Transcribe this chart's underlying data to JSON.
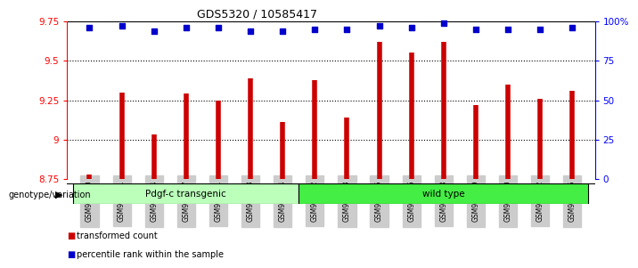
{
  "title": "GDS5320 / 10585417",
  "samples": [
    "GSM936490",
    "GSM936491",
    "GSM936494",
    "GSM936497",
    "GSM936501",
    "GSM936503",
    "GSM936504",
    "GSM936492",
    "GSM936493",
    "GSM936495",
    "GSM936496",
    "GSM936498",
    "GSM936499",
    "GSM936500",
    "GSM936502",
    "GSM936505"
  ],
  "transformed_count": [
    8.78,
    9.3,
    9.03,
    9.29,
    9.25,
    9.39,
    9.11,
    9.38,
    9.14,
    9.62,
    9.55,
    9.62,
    9.22,
    9.35,
    9.26,
    9.31
  ],
  "percentile_rank": [
    96,
    97,
    94,
    96,
    96,
    94,
    94,
    95,
    95,
    97,
    96,
    99,
    95,
    95,
    95,
    96
  ],
  "groups": [
    {
      "label": "Pdgf-c transgenic",
      "start": 0,
      "end": 6
    },
    {
      "label": "wild type",
      "start": 7,
      "end": 15
    }
  ],
  "bar_color": "#CC0000",
  "dot_color": "#0000CC",
  "ylim_left": [
    8.75,
    9.75
  ],
  "ylim_right": [
    0,
    100
  ],
  "yticks_left": [
    8.75,
    9.0,
    9.25,
    9.5,
    9.75
  ],
  "ytick_labels_left": [
    "8.75",
    "9",
    "9.25",
    "9.5",
    "9.75"
  ],
  "yticks_right": [
    0,
    25,
    50,
    75,
    100
  ],
  "ytick_labels_right": [
    "0",
    "25",
    "50",
    "75",
    "100%"
  ],
  "grid_values": [
    9.0,
    9.25,
    9.5
  ],
  "bg_color": "#FFFFFF",
  "tick_bg": "#CCCCCC",
  "group1_color": "#BBFFBB",
  "group2_color": "#44EE44",
  "legend_items": [
    {
      "label": "transformed count",
      "color": "#CC0000"
    },
    {
      "label": "percentile rank within the sample",
      "color": "#0000CC"
    }
  ],
  "genotype_label": "genotype/variation"
}
